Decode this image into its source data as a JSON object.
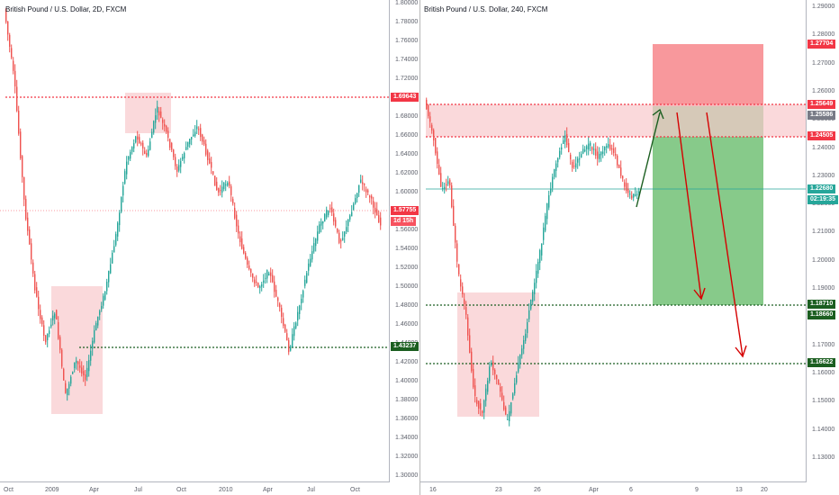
{
  "left_chart": {
    "title": "British Pound / U.S. Dollar, 2D, FXCM",
    "y_ticks": [
      "1.80000",
      "1.78000",
      "1.76000",
      "1.74000",
      "1.72000",
      "1.70000",
      "1.68000",
      "1.66000",
      "1.64000",
      "1.62000",
      "1.60000",
      "1.58000",
      "1.56000",
      "1.54000",
      "1.52000",
      "1.50000",
      "1.48000",
      "1.46000",
      "1.44000",
      "1.42000",
      "1.40000",
      "1.38000",
      "1.36000",
      "1.34000",
      "1.32000",
      "1.30000"
    ],
    "x_ticks": [
      "Oct",
      "2009",
      "Apr",
      "Jul",
      "Oct",
      "2010",
      "Apr",
      "Jul",
      "Oct"
    ],
    "price_tags": [
      {
        "text": "1.69643",
        "color": "#f23645"
      },
      {
        "text": "1.57755",
        "color": "#f23645"
      },
      {
        "text": "1d 15h",
        "color": "#f7525f"
      },
      {
        "text": "1.43237",
        "color": "#1b5e20"
      }
    ]
  },
  "right_chart": {
    "title": "British Pound / U.S. Dollar, 240, FXCM",
    "y_ticks": [
      "1.29000",
      "1.28000",
      "1.27000",
      "1.26000",
      "1.25000",
      "1.24000",
      "1.23000",
      "1.22000",
      "1.21000",
      "1.20000",
      "1.19000",
      "1.18000",
      "1.17000",
      "1.16000",
      "1.15000",
      "1.14000",
      "1.13000"
    ],
    "x_ticks": [
      "16",
      "23",
      "26",
      "Apr",
      "6",
      "9",
      "13",
      "20"
    ],
    "price_tags": [
      {
        "text": "1.27704",
        "color": "#f23645"
      },
      {
        "text": "1.25649",
        "color": "#f23645"
      },
      {
        "text": "1.25586",
        "color": "#787b86"
      },
      {
        "text": "1.24505",
        "color": "#f23645"
      },
      {
        "text": "1.22680",
        "color": "#26a69a"
      },
      {
        "text": "02:19:35",
        "color": "#26a69a"
      },
      {
        "text": "1.18710",
        "color": "#1b5e20"
      },
      {
        "text": "1.18660",
        "color": "#1b5e20"
      },
      {
        "text": "1.16622",
        "color": "#1b5e20"
      }
    ]
  },
  "colors": {
    "up": "#26a69a",
    "down": "#ef5350",
    "zone": "#f8c9cc",
    "tp": "#81c784",
    "sl": "#f77c80"
  }
}
